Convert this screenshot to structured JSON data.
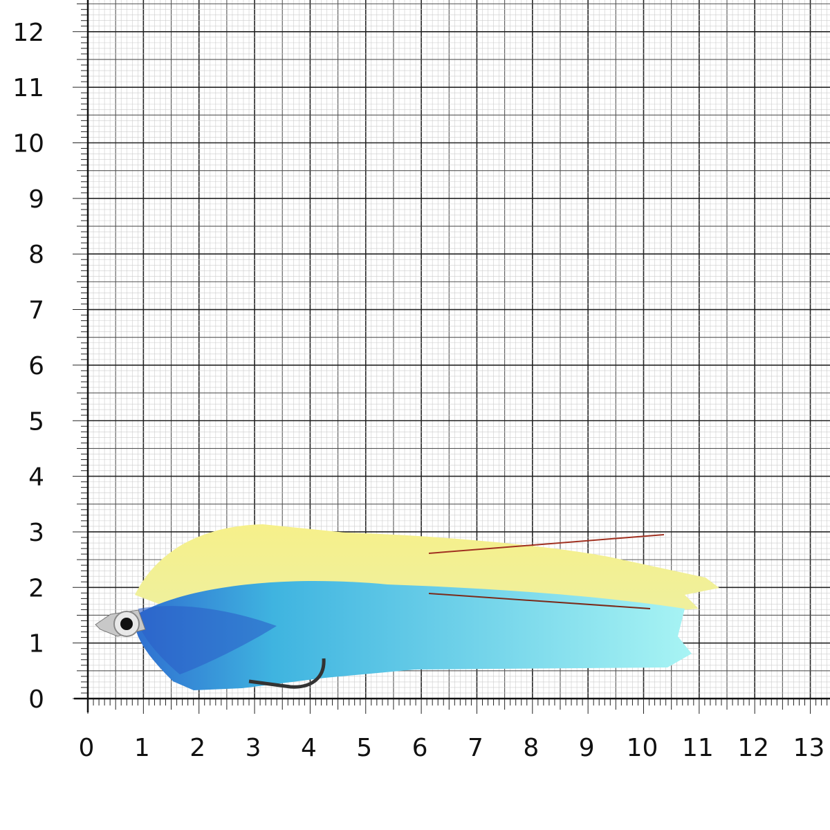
{
  "x_axis": {
    "labels": [
      "0",
      "1",
      "2",
      "3",
      "4",
      "5",
      "6",
      "7",
      "8",
      "9",
      "10",
      "11",
      "12",
      "13"
    ]
  },
  "y_axis": {
    "labels": [
      "0",
      "1",
      "2",
      "3",
      "4",
      "5",
      "6",
      "7",
      "8",
      "9",
      "10",
      "11",
      "12"
    ]
  }
}
